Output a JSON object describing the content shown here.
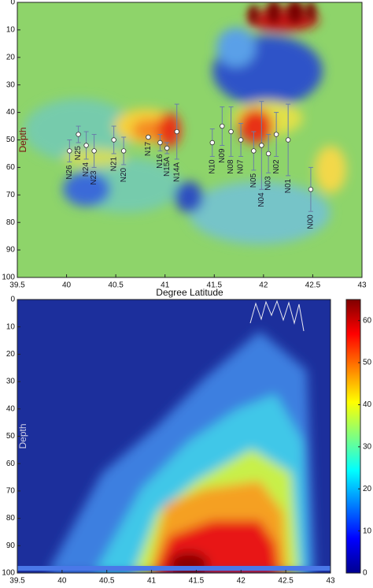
{
  "chart_data": [
    {
      "type": "heatmap",
      "xlabel": "Degree Latitude",
      "ylabel": "Depth",
      "xlim": [
        39.5,
        43
      ],
      "xticks": [
        39.5,
        40,
        40.5,
        41,
        41.5,
        42,
        42.5,
        43
      ],
      "ylim": [
        0,
        100
      ],
      "yticks": [
        0,
        10,
        20,
        30,
        40,
        50,
        60,
        70,
        80,
        90,
        100
      ],
      "y_inverted": true,
      "points": {
        "labels": [
          "N26",
          "N25",
          "N24",
          "N23",
          "N21",
          "N20",
          "N17",
          "N16",
          "N15A",
          "N14A",
          "N10",
          "N09",
          "N08",
          "N07",
          "N05",
          "N04",
          "N03",
          "N02",
          "N01",
          "N00"
        ],
        "x": [
          40.03,
          40.12,
          40.2,
          40.28,
          40.48,
          40.58,
          40.83,
          40.95,
          41.02,
          41.12,
          41.48,
          41.58,
          41.67,
          41.77,
          41.9,
          41.98,
          42.05,
          42.13,
          42.25,
          42.48
        ],
        "y": [
          54,
          48,
          52,
          54,
          50,
          54,
          49,
          51,
          53,
          47,
          51,
          45,
          47,
          50,
          54,
          52,
          55,
          48,
          50,
          68
        ],
        "errors": [
          4,
          3,
          5,
          6,
          5,
          5,
          0.5,
          3,
          2,
          10,
          5,
          7,
          9,
          6,
          7,
          16,
          7,
          8,
          13,
          8
        ]
      }
    },
    {
      "type": "heatmap",
      "ylabel": "Depth",
      "xlim": [
        39.5,
        43
      ],
      "xticks": [
        39.5,
        40,
        40.5,
        41,
        41.5,
        42,
        42.5,
        43
      ],
      "ylim": [
        0,
        100
      ],
      "yticks": [
        0,
        10,
        20,
        30,
        40,
        50,
        60,
        70,
        80,
        90,
        100
      ],
      "y_inverted": true,
      "colorbar": {
        "lim": [
          0,
          65
        ],
        "ticks": [
          0,
          10,
          20,
          30,
          40,
          50,
          60
        ]
      }
    }
  ]
}
